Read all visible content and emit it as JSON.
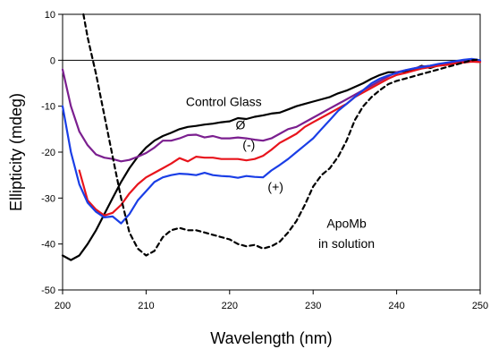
{
  "chart_data": {
    "type": "line",
    "title": "",
    "xlabel": "Wavelength  (nm)",
    "ylabel": "Ellipticity  (mdeg)",
    "xlim": [
      200,
      250
    ],
    "ylim": [
      -50,
      10
    ],
    "xticks": [
      200,
      210,
      220,
      230,
      240,
      250
    ],
    "yticks": [
      10,
      0,
      -10,
      -20,
      -30,
      -40,
      -50
    ],
    "grid": false,
    "legend": "none",
    "series": [
      {
        "name": "Control Glass",
        "color": "#000000",
        "dash": "solid",
        "x": [
          200,
          201,
          202,
          203,
          204,
          205,
          206,
          207,
          208,
          209,
          210,
          211,
          212,
          213,
          214,
          215,
          216,
          217,
          218,
          219,
          220,
          221,
          222,
          223,
          224,
          225,
          226,
          227,
          228,
          229,
          230,
          231,
          232,
          233,
          234,
          235,
          236,
          237,
          238,
          239,
          240,
          241,
          242,
          243,
          244,
          245,
          246,
          247,
          248,
          249,
          250
        ],
        "y": [
          -42.5,
          -43.5,
          -42.5,
          -40,
          -37,
          -33.5,
          -30,
          -26.5,
          -23.5,
          -21,
          -19,
          -17.5,
          -16.5,
          -15.8,
          -15,
          -14.5,
          -14.3,
          -14,
          -13.8,
          -13.5,
          -13.3,
          -12.6,
          -12.8,
          -12.3,
          -12,
          -11.6,
          -11.4,
          -10.7,
          -10,
          -9.5,
          -9,
          -8.5,
          -8,
          -7.2,
          -6.6,
          -5.8,
          -5,
          -4,
          -3.2,
          -2.6,
          -2.6,
          -2.4,
          -2,
          -1.2,
          -1.7,
          -1.1,
          -0.8,
          -0.5,
          -0.2,
          0,
          -0.2
        ]
      },
      {
        "name": "Ø",
        "color": "#7b1f8f",
        "dash": "solid",
        "x": [
          200,
          201,
          202,
          203,
          204,
          205,
          206,
          207,
          208,
          209,
          210,
          211,
          212,
          213,
          214,
          215,
          216,
          217,
          218,
          219,
          220,
          221,
          222,
          223,
          224,
          225,
          226,
          227,
          228,
          229,
          230,
          231,
          232,
          233,
          234,
          235,
          236,
          237,
          238,
          239,
          240,
          241,
          242,
          243,
          244,
          245,
          246,
          247,
          248,
          249,
          250
        ],
        "y": [
          -2,
          -10,
          -15.5,
          -18.5,
          -20.5,
          -21.2,
          -21.5,
          -22,
          -21.7,
          -21,
          -20.2,
          -19,
          -17.5,
          -17.5,
          -17,
          -16.3,
          -16.2,
          -16.8,
          -16.5,
          -17,
          -17,
          -16.8,
          -17,
          -17.3,
          -17.5,
          -17,
          -16,
          -15,
          -14.5,
          -13.5,
          -12.5,
          -11.5,
          -10.5,
          -9.5,
          -8.5,
          -7.5,
          -6.5,
          -5.5,
          -4.5,
          -3.5,
          -2.6,
          -2.2,
          -1.8,
          -1.4,
          -1.2,
          -0.9,
          -0.7,
          -0.5,
          -0.3,
          -0.2,
          -0.3
        ]
      },
      {
        "name": "(-)",
        "color": "#e8141c",
        "dash": "solid",
        "x": [
          202,
          203,
          204,
          205,
          206,
          207,
          208,
          209,
          210,
          211,
          212,
          213,
          214,
          215,
          216,
          217,
          218,
          219,
          220,
          221,
          222,
          223,
          224,
          225,
          226,
          227,
          228,
          229,
          230,
          231,
          232,
          233,
          234,
          235,
          236,
          237,
          238,
          239,
          240,
          241,
          242,
          243,
          244,
          245,
          246,
          247,
          248,
          249,
          250
        ],
        "y": [
          -24,
          -30.5,
          -32.5,
          -33.8,
          -33.2,
          -31.5,
          -29,
          -27,
          -25.5,
          -24.5,
          -23.5,
          -22.5,
          -21.3,
          -22,
          -21,
          -21.2,
          -21.2,
          -21.5,
          -21.5,
          -21.5,
          -21.8,
          -21.5,
          -20.8,
          -19.5,
          -18,
          -17,
          -16,
          -14.5,
          -13.5,
          -12.5,
          -11.5,
          -10.5,
          -9.5,
          -8,
          -7,
          -6,
          -5,
          -4,
          -3.2,
          -2.8,
          -2.3,
          -1.8,
          -1.5,
          -1.2,
          -1,
          -0.7,
          -0.5,
          -0.3,
          -0.4
        ]
      },
      {
        "name": "(+)",
        "color": "#1a3ee6",
        "dash": "solid",
        "x": [
          200,
          201,
          202,
          203,
          204,
          205,
          206,
          207,
          208,
          209,
          210,
          211,
          212,
          213,
          214,
          215,
          216,
          217,
          218,
          219,
          220,
          221,
          222,
          223,
          224,
          225,
          226,
          227,
          228,
          229,
          230,
          231,
          232,
          233,
          234,
          235,
          236,
          237,
          238,
          239,
          240,
          241,
          242,
          243,
          244,
          245,
          246,
          247,
          248,
          249,
          250
        ],
        "y": [
          -10,
          -20,
          -27,
          -31,
          -33,
          -34.2,
          -34,
          -35.5,
          -33.5,
          -30.5,
          -28.5,
          -26.5,
          -25.5,
          -25,
          -24.7,
          -24.8,
          -25,
          -24.5,
          -25,
          -25.2,
          -25.3,
          -25.6,
          -25.2,
          -25.4,
          -25.5,
          -24,
          -22.8,
          -21.5,
          -20,
          -18.5,
          -17,
          -15,
          -13,
          -11,
          -9.5,
          -8,
          -6.5,
          -5,
          -4,
          -3.3,
          -2.8,
          -2.2,
          -1.8,
          -1.5,
          -1.2,
          -0.8,
          -0.5,
          -0.2,
          0.1,
          0.3,
          0
        ]
      },
      {
        "name": "ApoMb in solution",
        "color": "#000000",
        "dash": "dashed",
        "x": [
          202.5,
          203,
          204,
          205,
          206,
          207,
          208,
          209,
          210,
          211,
          212,
          213,
          214,
          215,
          216,
          217,
          218,
          219,
          220,
          221,
          222,
          223,
          224,
          225,
          226,
          227,
          228,
          229,
          230,
          231,
          232,
          233,
          234,
          235,
          236,
          237,
          238,
          239,
          240,
          241,
          242,
          243,
          244,
          245,
          246,
          247,
          248,
          249,
          250
        ],
        "y": [
          10,
          5,
          -3,
          -12,
          -21,
          -30,
          -37.5,
          -41,
          -42.5,
          -41.5,
          -38.5,
          -37,
          -36.5,
          -37,
          -37,
          -37.5,
          -38,
          -38.5,
          -39,
          -40,
          -40.5,
          -40.2,
          -41,
          -40.5,
          -39.5,
          -37.5,
          -35,
          -31.5,
          -27.5,
          -25,
          -23.5,
          -21,
          -17.5,
          -13,
          -10,
          -8,
          -6.5,
          -5.2,
          -4.5,
          -4,
          -3.5,
          -3,
          -2.5,
          -2,
          -1.5,
          -1,
          -0.5,
          0,
          0.2
        ]
      }
    ],
    "annotations": [
      {
        "text": "Control Glass",
        "x": 219.3,
        "y": -10
      },
      {
        "text": "Ø",
        "x": 221.3,
        "y": -15
      },
      {
        "text": "(-)",
        "x": 222.3,
        "y": -19.3
      },
      {
        "text": "(+)",
        "x": 225.5,
        "y": -28.5
      },
      {
        "text": "ApoMb",
        "x": 234,
        "y": -36.5
      },
      {
        "text": "in solution",
        "x": 234,
        "y": -40.8
      }
    ]
  }
}
